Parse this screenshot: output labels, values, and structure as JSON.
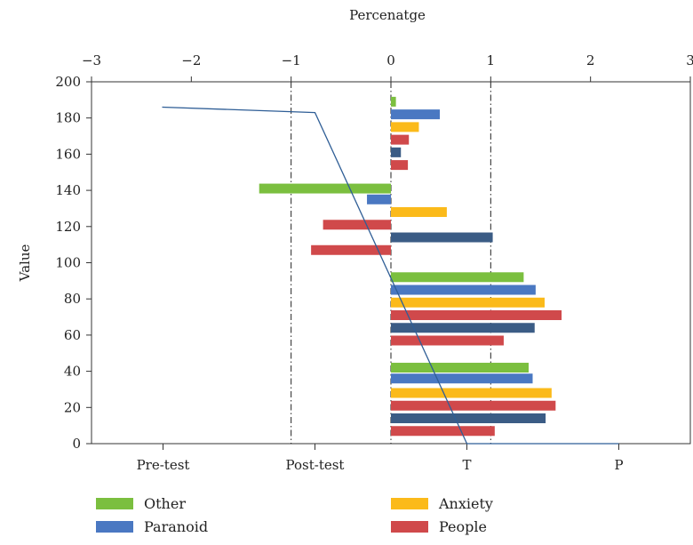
{
  "chart_data": {
    "type": "bar",
    "orientation": "horizontal",
    "title": "",
    "xlabel_top": "Percenatge",
    "ylabel": "Value",
    "x_top_range": [
      -3,
      3
    ],
    "x_top_ticks": [
      "−3",
      "−2",
      "−1",
      "0",
      "1",
      "2",
      "3"
    ],
    "ylim": [
      0,
      200
    ],
    "y_ticks": [
      "0",
      "20",
      "40",
      "60",
      "80",
      "100",
      "120",
      "140",
      "160",
      "180",
      "200"
    ],
    "x_bottom_categories": [
      "Pre-test",
      "Post-test",
      "T",
      "P"
    ],
    "reference_lines_x": [
      -1,
      0,
      1
    ],
    "grid": false,
    "legend_placement": "bottom",
    "series_colors": {
      "Other": "#7BBF3F",
      "Paranoid": "#4A78C2",
      "Anxiety": "#FBBA1A",
      "People": "#D0494B",
      "Unlabeled": "#3B5C85"
    },
    "series": [
      {
        "name": "Other",
        "color_key": "Other",
        "points": [
          {
            "y": 189,
            "x": 0.05
          },
          {
            "y": 141,
            "x": -1.32
          },
          {
            "y": 92,
            "x": 1.33
          },
          {
            "y": 42,
            "x": 1.38
          }
        ]
      },
      {
        "name": "Paranoid",
        "color_key": "Paranoid",
        "points": [
          {
            "y": 182,
            "x": 0.49
          },
          {
            "y": 135,
            "x": -0.24
          },
          {
            "y": 85,
            "x": 1.45
          },
          {
            "y": 36,
            "x": 1.42
          }
        ]
      },
      {
        "name": "Anxiety",
        "color_key": "Anxiety",
        "points": [
          {
            "y": 175,
            "x": 0.28
          },
          {
            "y": 128,
            "x": 0.56
          },
          {
            "y": 78,
            "x": 1.54
          },
          {
            "y": 28,
            "x": 1.61
          }
        ]
      },
      {
        "name": "People",
        "color_key": "People",
        "points": [
          {
            "y": 168,
            "x": 0.18
          },
          {
            "y": 121,
            "x": -0.68
          },
          {
            "y": 71,
            "x": 1.71
          },
          {
            "y": 21,
            "x": 1.65
          }
        ]
      },
      {
        "name": "",
        "color_key": "Unlabeled",
        "points": [
          {
            "y": 161,
            "x": 0.1
          },
          {
            "y": 114,
            "x": 1.02
          },
          {
            "y": 64,
            "x": 1.44
          },
          {
            "y": 14,
            "x": 1.55
          }
        ]
      },
      {
        "name": "",
        "color_key": "People",
        "points": [
          {
            "y": 154,
            "x": 0.17
          },
          {
            "y": 107,
            "x": -0.8
          },
          {
            "y": 57,
            "x": 1.13
          },
          {
            "y": 7,
            "x": 1.04
          }
        ]
      }
    ],
    "line_series": {
      "color": "#2F5E96",
      "points": [
        {
          "category": "Pre-test",
          "y": 186
        },
        {
          "category": "Post-test",
          "y": 183
        },
        {
          "category": "T",
          "y": 0
        },
        {
          "category": "P",
          "y": 0
        }
      ]
    },
    "legend": [
      {
        "label": "Other",
        "color_key": "Other"
      },
      {
        "label": "Paranoid",
        "color_key": "Paranoid"
      },
      {
        "label": "Anxiety",
        "color_key": "Anxiety"
      },
      {
        "label": "People",
        "color_key": "People"
      }
    ]
  }
}
